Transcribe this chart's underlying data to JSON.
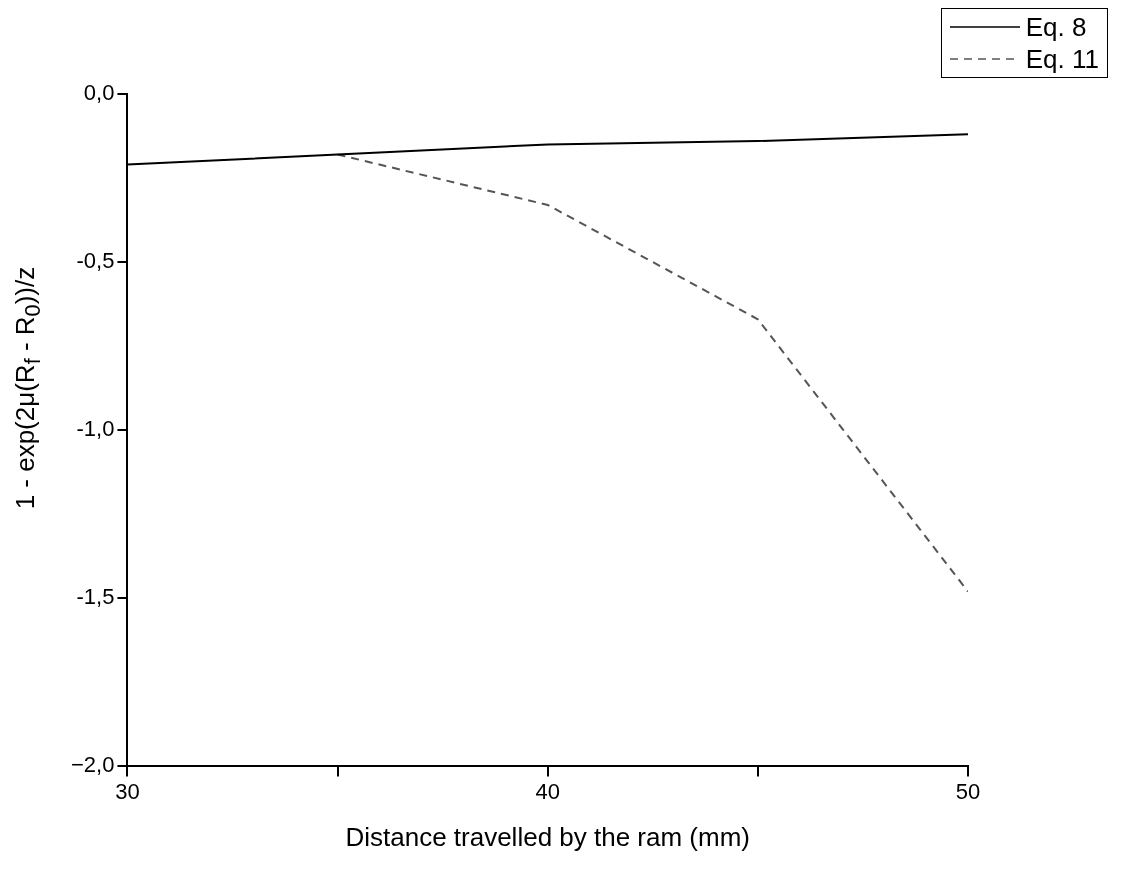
{
  "chart_data": {
    "type": "line",
    "xlabel": "Distance travelled by the ram (mm)",
    "ylabel": "1 - exp(2μ(R$_{f}$ - R$_{0}$))/z",
    "xlim": [
      30,
      50
    ],
    "xticks": [
      30,
      {
        "value": 35,
        "label": null
      },
      40,
      {
        "value": 45,
        "label": null
      },
      50
    ],
    "ylim": [
      -2,
      0
    ],
    "yticks": [
      {
        "value": -2,
        "label": "−2,0"
      },
      {
        "value": -1.5,
        "label": "-1,5"
      },
      {
        "value": -1,
        "label": "-1,0"
      },
      {
        "value": -0.5,
        "label": "-0,5"
      },
      {
        "value": 0,
        "label": "0,0"
      }
    ],
    "grid": false,
    "legend": "top right",
    "marker": "none",
    "series": [
      {
        "name": "Eq. 8",
        "color": "#000000",
        "line_style": "solid",
        "x": [
          30,
          35,
          40,
          45,
          50
        ],
        "values": [
          -0.21,
          -0.18,
          -0.15,
          -0.14,
          -0.12
        ]
      },
      {
        "name": "Eq. 11",
        "color": "#555555",
        "line_style": "dashed",
        "x": [
          35,
          40,
          45,
          50
        ],
        "values": [
          -0.18,
          -0.33,
          -0.67,
          -1.48
        ]
      }
    ]
  }
}
